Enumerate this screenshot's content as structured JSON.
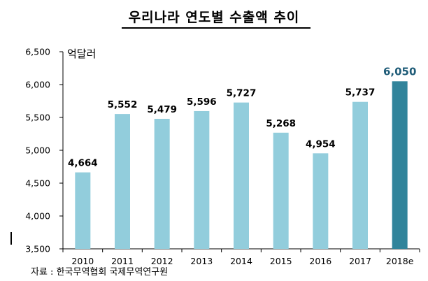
{
  "header": {
    "title": "우리나라 연도별 수출액 추이",
    "unit": "억달러"
  },
  "footer": {
    "source": "자료 : 한국무역협회 국제무역연구원"
  },
  "colors": {
    "bar": "#92CDDC",
    "highlight_bar": "#31849B",
    "highlight_label": "#1F5C78",
    "grid": "#D9D9D9"
  },
  "chart_data": {
    "type": "bar",
    "title": "우리나라 연도별 수출액 추이",
    "ylabel": "억달러",
    "xlabel": "",
    "categories": [
      "2010",
      "2011",
      "2012",
      "2013",
      "2014",
      "2015",
      "2016",
      "2017",
      "2018e"
    ],
    "values": [
      4664,
      5552,
      5479,
      5596,
      5727,
      5268,
      4954,
      5737,
      6050
    ],
    "data_labels": [
      "4,664",
      "5,552",
      "5,479",
      "5,596",
      "5,727",
      "5,268",
      "4,954",
      "5,737",
      "6,050"
    ],
    "ylim": [
      3500,
      6500
    ],
    "yticks": [
      3500,
      4000,
      4500,
      5000,
      5500,
      6000,
      6500
    ],
    "ytick_labels": [
      "3,500",
      "4,000",
      "4,500",
      "5,000",
      "5,500",
      "6,000",
      "6,500"
    ],
    "highlight_category": "2018e",
    "grid": false,
    "legend": "none"
  }
}
